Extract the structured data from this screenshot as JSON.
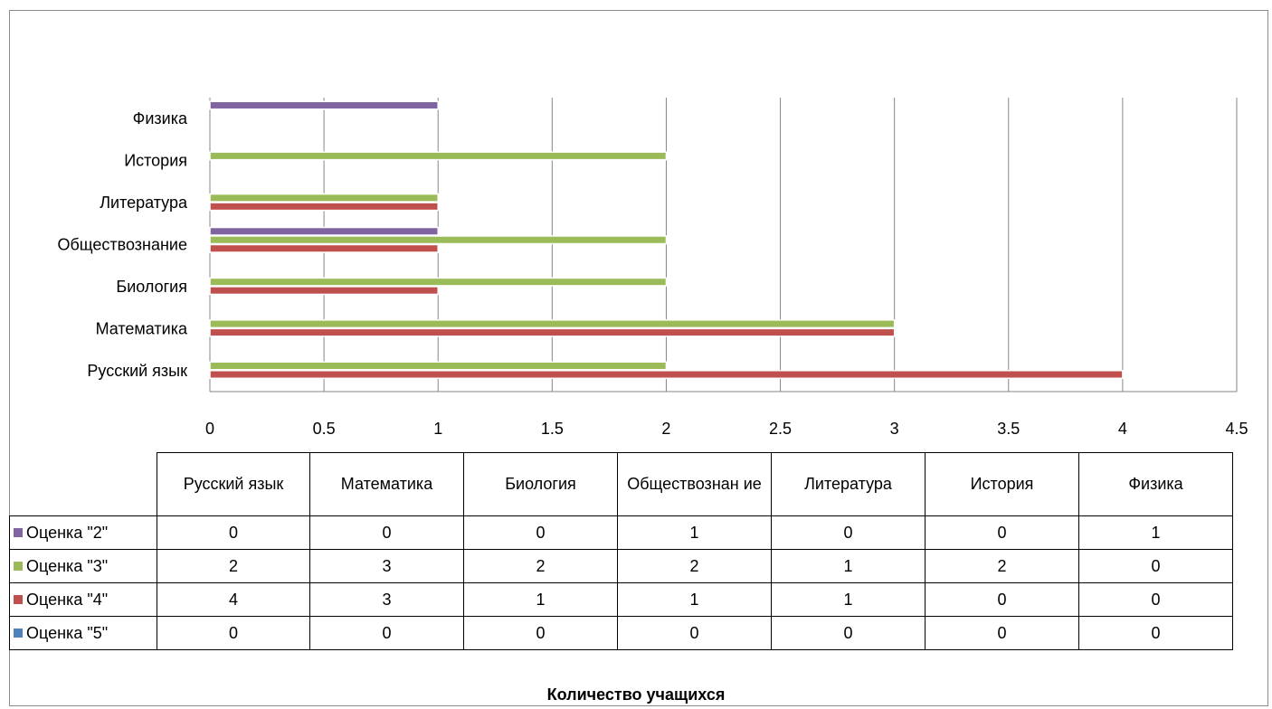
{
  "chart_data": {
    "type": "bar",
    "orientation": "horizontal",
    "categories": [
      "Русский язык",
      "Математика",
      "Биология",
      "Обществознание",
      "Литература",
      "История",
      "Физика"
    ],
    "table_headers": [
      "Русский язык",
      "Математика",
      "Биология",
      "Обществознан ие",
      "Литература",
      "История",
      "Физика"
    ],
    "series": [
      {
        "name": "Оценка \"2\"",
        "color": "#8064A2",
        "values": [
          0,
          0,
          0,
          1,
          0,
          0,
          1
        ]
      },
      {
        "name": "Оценка \"3\"",
        "color": "#9BBB59",
        "values": [
          2,
          3,
          2,
          2,
          1,
          2,
          0
        ]
      },
      {
        "name": "Оценка \"4\"",
        "color": "#C0504D",
        "values": [
          4,
          3,
          1,
          1,
          1,
          0,
          0
        ]
      },
      {
        "name": "Оценка \"5\"",
        "color": "#4F81BD",
        "values": [
          0,
          0,
          0,
          0,
          0,
          0,
          0
        ]
      }
    ],
    "xlim": [
      0,
      4.5
    ],
    "xticks": [
      "0",
      "0.5",
      "1",
      "1.5",
      "2",
      "2.5",
      "3",
      "3.5",
      "4",
      "4.5"
    ],
    "xlabel": "Количество учащихся",
    "grid": true,
    "legend": "data-table"
  }
}
